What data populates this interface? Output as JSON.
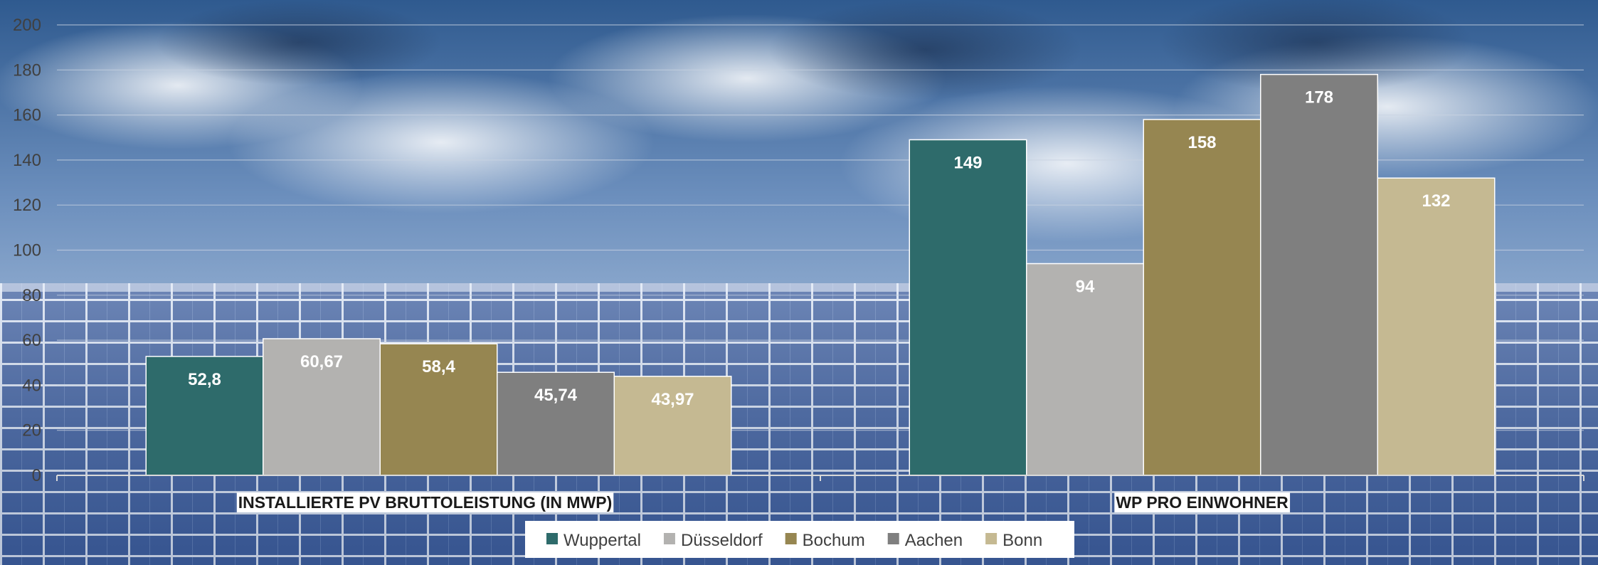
{
  "chart_data": {
    "type": "bar",
    "categories": [
      "INSTALLIERTE PV BRUTTOLEISTUNG (IN MWP)",
      "WP PRO EINWOHNER"
    ],
    "series": [
      {
        "name": "Wuppertal",
        "values": [
          52.8,
          149
        ],
        "labels": [
          "52,8",
          "149"
        ],
        "color": "#2e6b6b"
      },
      {
        "name": "Düsseldorf",
        "values": [
          60.67,
          94
        ],
        "labels": [
          "60,67",
          "94"
        ],
        "color": "#b3b2b0"
      },
      {
        "name": "Bochum",
        "values": [
          58.4,
          158
        ],
        "labels": [
          "58,4",
          "158"
        ],
        "color": "#968651"
      },
      {
        "name": "Aachen",
        "values": [
          45.74,
          178
        ],
        "labels": [
          "45,74",
          "178"
        ],
        "color": "#7f7f7f"
      },
      {
        "name": "Bonn",
        "values": [
          43.97,
          132
        ],
        "labels": [
          "43,97",
          "132"
        ],
        "color": "#c5b992"
      }
    ],
    "ylim": [
      0,
      200
    ],
    "yticks": [
      "0",
      "20",
      "40",
      "60",
      "80",
      "100",
      "120",
      "140",
      "160",
      "180",
      "200"
    ],
    "grid": true,
    "legend_position": "bottom",
    "title": "",
    "xlabel": "",
    "ylabel": ""
  }
}
